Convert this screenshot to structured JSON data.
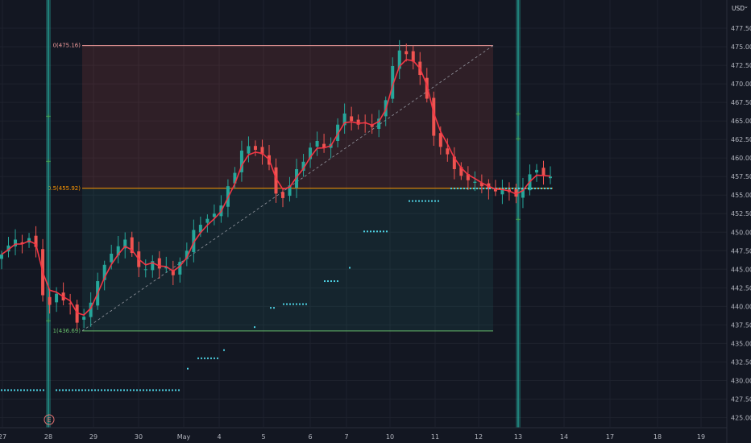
{
  "chart_data": {
    "type": "candlestick",
    "currency_label": "USD",
    "y_axis": {
      "min": 423.75,
      "max": 480.0,
      "ticks": [
        "425.00",
        "427.50",
        "430.00",
        "432.50",
        "435.00",
        "437.50",
        "440.00",
        "442.50",
        "445.00",
        "447.50",
        "450.00",
        "452.50",
        "455.00",
        "457.50",
        "460.00",
        "462.50",
        "465.00",
        "467.50",
        "470.00",
        "472.50",
        "475.00",
        "477.50"
      ]
    },
    "x_axis": {
      "labels": [
        "27",
        "28",
        "29",
        "30",
        "May",
        "4",
        "5",
        "6",
        "7",
        "10",
        "11",
        "12",
        "13",
        "14",
        "17",
        "18",
        "19"
      ]
    },
    "fibonacci": [
      {
        "label": "0(475.16)",
        "level": 475.16,
        "color": "#ef9a9a"
      },
      {
        "label": "0.5(455.92)",
        "level": 455.92,
        "color": "#ff9800"
      },
      {
        "label": "1(436.69)",
        "level": 436.69,
        "color": "#66bb6a"
      }
    ],
    "earnings_marker": "E",
    "closes": [
      447.0,
      448.2,
      449.0,
      448.4,
      449.2,
      448.0,
      441.5,
      440.2,
      441.7,
      440.8,
      440.3,
      437.8,
      438.6,
      440.5,
      443.4,
      445.6,
      447.1,
      448.1,
      449.0,
      447.2,
      445.3,
      445.0,
      446.1,
      445.1,
      445.3,
      444.2,
      446.0,
      447.5,
      450.3,
      451.0,
      451.8,
      452.5,
      453.6,
      456.2,
      458.0,
      461.0,
      461.6,
      461.1,
      460.5,
      459.1,
      455.2,
      454.6,
      456.3,
      458.5,
      459.5,
      461.4,
      462.3,
      461.4,
      461.9,
      464.5,
      466.0,
      465.0,
      464.5,
      464.8,
      464.2,
      465.3,
      467.8,
      472.4,
      474.5,
      474.0,
      473.0,
      471.2,
      468.0,
      463.0,
      461.5,
      460.5,
      458.5,
      457.6,
      457.0,
      456.8,
      456.2,
      455.8,
      455.5,
      455.7,
      455.4,
      454.8,
      456.0,
      457.8,
      458.4,
      457.6,
      457.5
    ],
    "legend_placement": "none",
    "grid": true
  }
}
